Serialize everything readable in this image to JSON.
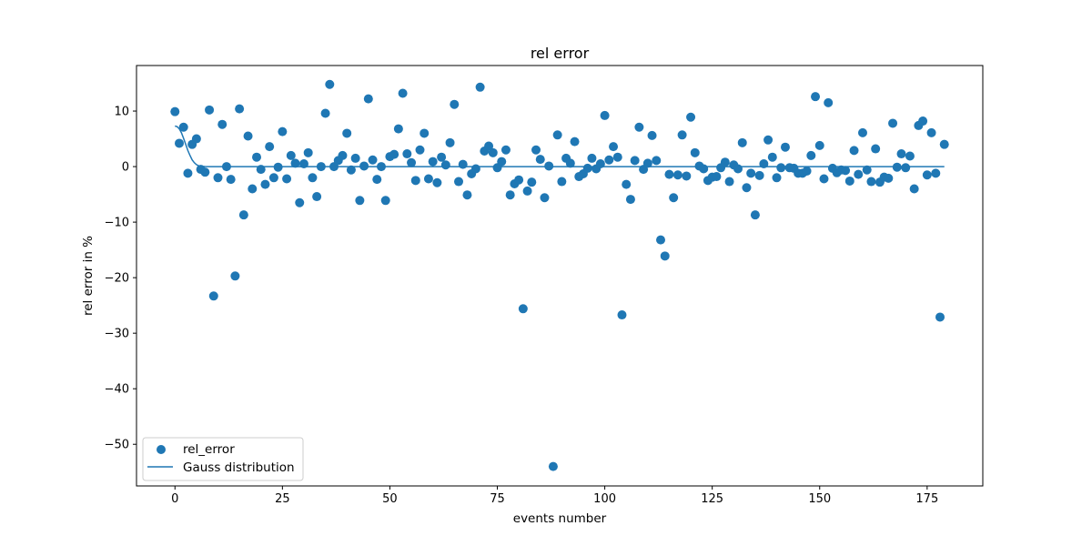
{
  "chart_data": {
    "type": "scatter",
    "title": "rel error",
    "xlabel": "events number",
    "ylabel": "rel error in %",
    "xlim": [
      -8.95,
      187.95
    ],
    "ylim": [
      -57.5,
      18.2
    ],
    "xticks": [
      0,
      25,
      50,
      75,
      100,
      125,
      150,
      175
    ],
    "yticks": [
      10,
      0,
      -10,
      -20,
      -30,
      -40,
      -50
    ],
    "grid": false,
    "legend_position": "lower-left",
    "colors": {
      "primary": "#1f77b4"
    },
    "series": [
      {
        "name": "rel_error",
        "type": "scatter",
        "x": [
          0,
          1,
          2,
          3,
          4,
          5,
          6,
          7,
          8,
          9,
          10,
          11,
          12,
          13,
          14,
          15,
          16,
          17,
          18,
          19,
          20,
          21,
          22,
          23,
          24,
          25,
          26,
          27,
          28,
          29,
          30,
          31,
          32,
          33,
          34,
          35,
          36,
          37,
          38,
          39,
          40,
          41,
          42,
          43,
          44,
          45,
          46,
          47,
          48,
          49,
          50,
          51,
          52,
          53,
          54,
          55,
          56,
          57,
          58,
          59,
          60,
          61,
          62,
          63,
          64,
          65,
          66,
          67,
          68,
          69,
          70,
          71,
          72,
          73,
          74,
          75,
          76,
          77,
          78,
          79,
          80,
          81,
          82,
          83,
          84,
          85,
          86,
          87,
          88,
          89,
          90,
          91,
          92,
          93,
          94,
          95,
          96,
          97,
          98,
          99,
          100,
          101,
          102,
          103,
          104,
          105,
          106,
          107,
          108,
          109,
          110,
          111,
          112,
          113,
          114,
          115,
          116,
          117,
          118,
          119,
          120,
          121,
          122,
          123,
          124,
          125,
          126,
          127,
          128,
          129,
          130,
          131,
          132,
          133,
          134,
          135,
          136,
          137,
          138,
          139,
          140,
          141,
          142,
          143,
          144,
          145,
          146,
          147,
          148,
          149,
          150,
          151,
          152,
          153,
          154,
          155,
          156,
          157,
          158,
          159,
          160,
          161,
          162,
          163,
          164,
          165,
          166,
          167,
          168,
          169,
          170,
          171,
          172,
          173,
          174,
          175,
          176,
          177,
          178,
          179
        ],
        "y": [
          9.9,
          4.2,
          7.1,
          -1.2,
          4.0,
          5.0,
          -0.5,
          -1.0,
          10.2,
          -23.3,
          -2.0,
          7.6,
          0.0,
          -2.3,
          -19.7,
          10.4,
          -8.7,
          5.5,
          -4.0,
          1.7,
          -0.5,
          -3.2,
          3.6,
          -2.0,
          -0.1,
          6.3,
          -2.2,
          2.0,
          0.6,
          -6.5,
          0.5,
          2.5,
          -2.0,
          -5.4,
          0.0,
          9.6,
          14.8,
          0.0,
          1.1,
          2.0,
          6.0,
          -0.6,
          1.5,
          -6.1,
          0.1,
          12.2,
          1.2,
          -2.3,
          0.0,
          -6.1,
          1.8,
          2.2,
          6.8,
          13.2,
          2.3,
          0.7,
          -2.5,
          3.0,
          6.0,
          -2.2,
          0.9,
          -2.9,
          1.7,
          0.3,
          4.3,
          11.2,
          -2.7,
          0.4,
          -5.1,
          -1.3,
          -0.4,
          14.3,
          2.8,
          3.7,
          2.5,
          -0.2,
          0.9,
          3.0,
          -5.1,
          -3.1,
          -2.4,
          -25.6,
          -4.4,
          -2.8,
          3.0,
          1.3,
          -5.6,
          0.1,
          -54.0,
          5.7,
          -2.7,
          1.5,
          0.6,
          4.5,
          -1.8,
          -1.3,
          -0.3,
          1.5,
          -0.4,
          0.5,
          9.2,
          1.2,
          3.6,
          1.7,
          -26.7,
          -3.2,
          -5.9,
          1.1,
          7.1,
          -0.5,
          0.6,
          5.6,
          1.1,
          -13.2,
          -16.1,
          -1.4,
          -5.6,
          -1.5,
          5.7,
          -1.7,
          8.9,
          2.5,
          0.1,
          -0.4,
          -2.5,
          -1.9,
          -1.8,
          -0.2,
          0.8,
          -2.7,
          0.3,
          -0.4,
          4.3,
          -3.8,
          -1.2,
          -8.7,
          -1.6,
          0.5,
          4.8,
          1.7,
          -2.0,
          -0.2,
          3.5,
          -0.2,
          -0.3,
          -1.2,
          -1.2,
          -0.8,
          2.0,
          12.6,
          3.8,
          -2.2,
          11.5,
          -0.3,
          -1.1,
          -0.6,
          -0.7,
          -2.6,
          2.9,
          -1.4,
          6.1,
          -0.6,
          -2.7,
          3.2,
          -2.8,
          -1.9,
          -2.1,
          7.8,
          -0.1,
          2.3,
          -0.2,
          1.9,
          -4.0,
          7.4,
          8.2,
          -1.5,
          6.1,
          -1.2,
          -27.1,
          4.0
        ]
      },
      {
        "name": "Gauss distribution",
        "type": "line",
        "x": [
          0,
          0.5,
          1,
          1.5,
          2,
          2.5,
          3,
          3.5,
          4,
          4.5,
          5,
          5.5,
          6,
          7,
          8,
          9,
          10,
          179
        ],
        "y": [
          7.3,
          7.2,
          6.8,
          6.1,
          5.1,
          4.0,
          2.9,
          2.0,
          1.2,
          0.7,
          0.35,
          0.15,
          0.06,
          0.01,
          0,
          0,
          0,
          0
        ]
      }
    ]
  }
}
